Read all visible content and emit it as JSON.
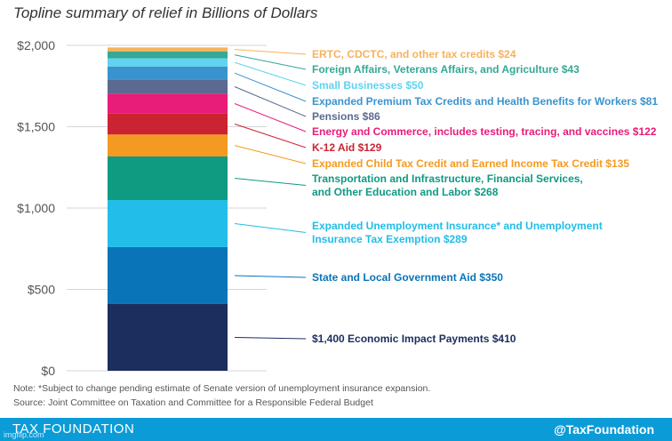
{
  "title": "Topline summary of relief in Billions of Dollars",
  "note": "Note: *Subject to change pending estimate of Senate version of unemployment insurance expansion.",
  "source": "Source: Joint Committee on Taxation and Committee for a Responsible Federal Budget",
  "footer": {
    "brand": "TAX FOUNDATION",
    "handle": "@TaxFoundation",
    "watermark": "imgflip.com"
  },
  "chart_data": {
    "type": "bar",
    "stacked": true,
    "title": "Topline summary of relief in Billions of Dollars",
    "ylim": [
      0,
      2000
    ],
    "yticks": [
      0,
      500,
      1000,
      1500,
      2000
    ],
    "ytick_labels": [
      "$0",
      "$500",
      "$1,000",
      "$1,500",
      "$2,000"
    ],
    "grid": true,
    "series": [
      {
        "name": "$1,400 Economic Impact Payments $410",
        "lines": [
          "$1,400 Economic Impact Payments $410"
        ],
        "value": 410,
        "color": "#1c2e5e"
      },
      {
        "name": "State and Local Government Aid $350",
        "lines": [
          "State and Local Government Aid $350"
        ],
        "value": 350,
        "color": "#0a74b8"
      },
      {
        "name": "Expanded Unemployment Insurance* and Unemployment Insurance Tax Exemption $289",
        "lines": [
          "Expanded Unemployment Insurance* and Unemployment",
          "Insurance Tax Exemption $289"
        ],
        "value": 289,
        "color": "#22bde8"
      },
      {
        "name": "Transportation and Infrastructure, Financial Services, and Other Education and Labor $268",
        "lines": [
          "Transportation and Infrastructure, Financial Services,",
          "and Other Education and Labor $268"
        ],
        "value": 268,
        "color": "#0f9a82"
      },
      {
        "name": "Expanded Child Tax Credit and Earned Income Tax Credit $135",
        "lines": [
          "Expanded Child Tax Credit and Earned Income Tax Credit $135"
        ],
        "value": 135,
        "color": "#f59a20"
      },
      {
        "name": "K-12 Aid $129",
        "lines": [
          "K-12 Aid $129"
        ],
        "value": 129,
        "color": "#cc2332"
      },
      {
        "name": "Energy and Commerce, includes testing, tracing, and vaccines $122",
        "lines": [
          "Energy and Commerce, includes testing, tracing, and vaccines $122"
        ],
        "value": 122,
        "color": "#e81c79"
      },
      {
        "name": "Pensions $86",
        "lines": [
          "Pensions $86"
        ],
        "value": 86,
        "color": "#5a6a90"
      },
      {
        "name": "Expanded Premium Tax Credits and Health Benefits for Workers $81",
        "lines": [
          "Expanded Premium Tax Credits and Health Benefits for Workers $81"
        ],
        "value": 81,
        "color": "#3b93cd"
      },
      {
        "name": "Small Businesses $50",
        "lines": [
          "Small Businesses $50"
        ],
        "value": 50,
        "color": "#5fd3ef"
      },
      {
        "name": "Foreign Affairs, Veterans Affairs, and Agriculture $43",
        "lines": [
          "Foreign Affairs, Veterans Affairs, and Agriculture $43"
        ],
        "value": 43,
        "color": "#35a896"
      },
      {
        "name": "ERTC, CDCTC, and other tax credits $24",
        "lines": [
          "ERTC, CDCTC, and other tax credits $24"
        ],
        "value": 24,
        "color": "#f7b25c"
      }
    ]
  }
}
